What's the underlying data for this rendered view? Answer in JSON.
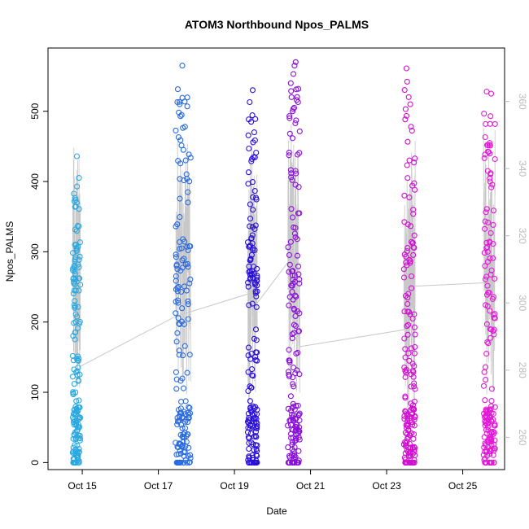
{
  "chart_data": {
    "type": "scatter",
    "title": "ATOM3 Northbound Npos_PALMS",
    "xlabel": "Date",
    "ylabel": "Npos_PALMS",
    "x_ticks": [
      "Oct 15",
      "Oct 17",
      "Oct 19",
      "Oct 21",
      "Oct 23",
      "Oct 25"
    ],
    "x_tick_days": [
      15,
      17,
      19,
      21,
      23,
      25
    ],
    "xlim_days": [
      14.1,
      26.1
    ],
    "ylim": [
      -10,
      590
    ],
    "y_ticks": [
      0,
      100,
      200,
      300,
      400,
      500
    ],
    "right_axis": {
      "ticks": [
        260,
        280,
        300,
        320,
        340,
        360
      ],
      "range": [
        250.4,
        375.9
      ],
      "color": "#bbbbbb",
      "label": ""
    },
    "grid": false,
    "legend": "none",
    "series": [
      {
        "flight": 1,
        "day_range": [
          14.75,
          14.95
        ],
        "color": "#2BA8E0",
        "max_value": 436,
        "points": [
          [
            14.86,
            436
          ],
          [
            14.88,
            337
          ],
          [
            14.78,
            255
          ],
          [
            14.79,
            245
          ],
          [
            14.8,
            220
          ],
          [
            14.83,
            200
          ],
          [
            14.81,
            185
          ],
          [
            14.85,
            148
          ],
          [
            14.87,
            130
          ],
          [
            14.9,
            117
          ],
          [
            14.79,
            112
          ],
          [
            14.82,
            100
          ]
        ]
      },
      {
        "flight": 2,
        "day_range": [
          17.45,
          17.85
        ],
        "color": "#2A6BE0",
        "max_value": 565,
        "points": [
          [
            17.63,
            565
          ],
          [
            17.5,
            513
          ],
          [
            17.56,
            510
          ],
          [
            17.76,
            507
          ],
          [
            17.58,
            493
          ],
          [
            17.7,
            478
          ],
          [
            17.53,
            463
          ],
          [
            17.66,
            445
          ],
          [
            17.72,
            430
          ]
        ]
      },
      {
        "flight": 3,
        "day_range": [
          19.35,
          19.6
        ],
        "color": "#2A10D8",
        "max_value": 530,
        "points": [
          [
            19.48,
            530
          ],
          [
            19.4,
            513
          ],
          [
            19.44,
            485
          ],
          [
            19.52,
            470
          ],
          [
            19.38,
            447
          ],
          [
            19.46,
            432
          ]
        ]
      },
      {
        "flight": 4,
        "day_range": [
          20.4,
          20.72
        ],
        "color": "#8A10D8",
        "max_value": 570,
        "points": [
          [
            20.61,
            570
          ],
          [
            20.58,
            565
          ],
          [
            20.55,
            553
          ],
          [
            20.5,
            520
          ],
          [
            20.57,
            505
          ],
          [
            20.53,
            500
          ],
          [
            20.62,
            487
          ],
          [
            20.46,
            468
          ]
        ]
      },
      {
        "flight": 5,
        "day_range": [
          23.45,
          23.75
        ],
        "color": "#D010D0",
        "max_value": 561,
        "points": [
          [
            23.52,
            561
          ],
          [
            23.54,
            542
          ],
          [
            23.58,
            520
          ],
          [
            23.62,
            510
          ],
          [
            23.5,
            503
          ],
          [
            23.64,
            478
          ],
          [
            23.6,
            430
          ],
          [
            23.72,
            427
          ],
          [
            23.55,
            405
          ]
        ]
      },
      {
        "flight": 6,
        "day_range": [
          25.55,
          25.85
        ],
        "color": "#E21AD8",
        "max_value": 528,
        "points": [
          [
            25.63,
            528
          ],
          [
            25.75,
            525
          ],
          [
            25.73,
            493
          ],
          [
            25.7,
            452
          ],
          [
            25.68,
            442
          ],
          [
            25.66,
            415
          ],
          [
            25.72,
            400
          ]
        ]
      }
    ],
    "secondary_line": {
      "color": "#c8c8c8",
      "note_axis": "right",
      "connections": [
        [
          14.93,
          281
        ],
        [
          17.45,
          296
        ],
        [
          19.45,
          303
        ],
        [
          19.6,
          300
        ],
        [
          20.4,
          312
        ],
        [
          20.72,
          287
        ],
        [
          23.45,
          292
        ],
        [
          23.75,
          305
        ],
        [
          25.55,
          306
        ]
      ]
    }
  }
}
